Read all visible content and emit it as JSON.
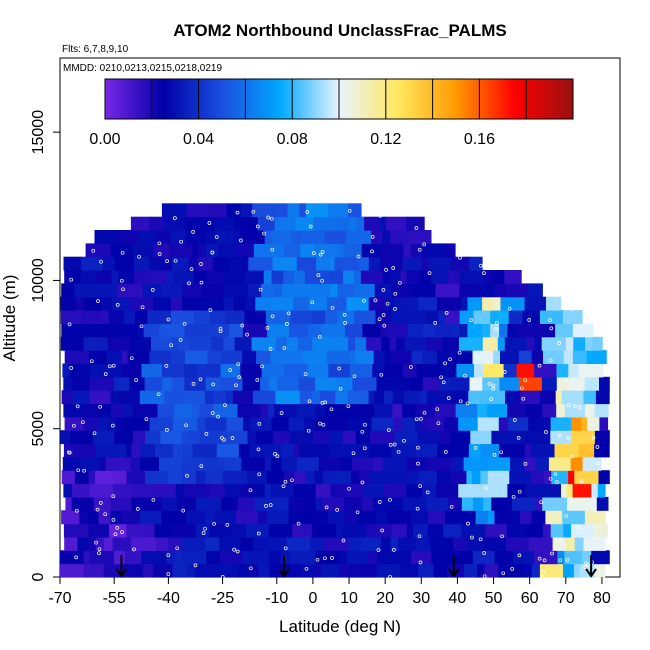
{
  "chart_data": {
    "type": "heatmap",
    "title": "ATOM2 Northbound UnclassFrac_PALMS",
    "flights_label": "Flts: 6,7,8,9,10",
    "dates_label": "MMDD: 0210,0213,0215,0218,0219",
    "xlabel": "Latitude (deg N)",
    "ylabel": "Altitude (m)",
    "xlim": [
      -70,
      85
    ],
    "ylim": [
      0,
      17500
    ],
    "x_ticks": [
      "-70",
      "-55",
      "-40",
      "-25",
      "-10",
      "0",
      "10",
      "20",
      "30",
      "40",
      "50",
      "60",
      "70",
      "80"
    ],
    "x_tick_values": [
      -70,
      -55,
      -40,
      -25,
      -10,
      0,
      10,
      20,
      30,
      40,
      50,
      60,
      70,
      80
    ],
    "y_ticks": [
      "0",
      "5000",
      "10000",
      "15000"
    ],
    "y_tick_values": [
      0,
      5000,
      10000,
      15000
    ],
    "colorbar": {
      "min": 0,
      "max": 0.2,
      "tick_labels": [
        "0.00",
        "0.04",
        "0.08",
        "0.12",
        "0.16"
      ],
      "tick_values": [
        0,
        0.04,
        0.08,
        0.12,
        0.16
      ],
      "colors": [
        "#7a28e8",
        "#0000a8",
        "#1a4fe0",
        "#00a8ff",
        "#e8f4ff",
        "#ffe860",
        "#ff9a00",
        "#ff0000",
        "#9a1010"
      ]
    },
    "arrows_latitude": [
      -53,
      -8,
      39,
      77
    ],
    "max_altitude_profile": [
      {
        "lat": -70,
        "alt": 10200
      },
      {
        "lat": -65,
        "alt": 11200
      },
      {
        "lat": -60,
        "alt": 11600
      },
      {
        "lat": -50,
        "alt": 12000
      },
      {
        "lat": -40,
        "alt": 12400
      },
      {
        "lat": -25,
        "alt": 12500
      },
      {
        "lat": -10,
        "alt": 12600
      },
      {
        "lat": 0,
        "alt": 12500
      },
      {
        "lat": 15,
        "alt": 12400
      },
      {
        "lat": 30,
        "alt": 12000
      },
      {
        "lat": 40,
        "alt": 11000
      },
      {
        "lat": 50,
        "alt": 10500
      },
      {
        "lat": 60,
        "alt": 10000
      },
      {
        "lat": 70,
        "alt": 9200
      },
      {
        "lat": 78,
        "alt": 8500
      },
      {
        "lat": 82,
        "alt": 8000
      }
    ],
    "legend": "top",
    "grid": false
  }
}
